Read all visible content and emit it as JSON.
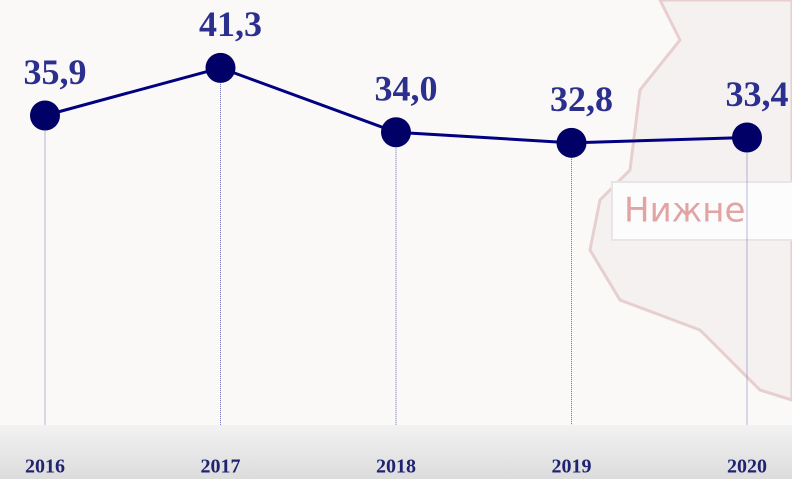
{
  "chart_data": {
    "type": "line",
    "categories": [
      "2016",
      "2017",
      "2018",
      "2019",
      "2020"
    ],
    "values": [
      35.9,
      41.3,
      34.0,
      32.8,
      33.4
    ],
    "value_labels": [
      "35,9",
      "41,3",
      "34,0",
      "32,8",
      "33,4"
    ],
    "color": "#000080",
    "ylim": [
      0,
      49
    ],
    "annotations": [
      "Нижне"
    ]
  }
}
